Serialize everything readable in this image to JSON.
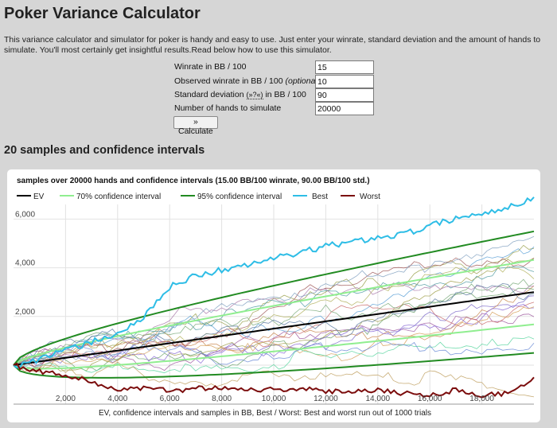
{
  "page": {
    "title": "Poker Variance Calculator",
    "intro": "This variance calculator and simulator for poker is handy and easy to use. Just enter your winrate, standard deviation and the amount of hands to simulate. You'll most certainly get insightful results.Read below how to use this simulator.",
    "section_title": "20 samples and confidence intervals"
  },
  "form": {
    "winrate_label": "Winrate in BB / 100",
    "winrate_value": "15",
    "observed_label": "Observed winrate in BB / 100",
    "observed_optional": "(optional)",
    "observed_value": "10",
    "stddev_label": "Standard deviation",
    "stddev_link": "(»?«)",
    "stddev_label_suffix": "in BB / 100",
    "stddev_value": "90",
    "hands_label": "Number of hands to simulate",
    "hands_value": "20000",
    "calculate_label": "» Calculate"
  },
  "colors": {
    "ev": "#000000",
    "ci70": "#90ee90",
    "ci95": "#228b22",
    "best": "#2ebde6",
    "worst": "#7b0c0c"
  },
  "chart_data": {
    "type": "line",
    "title": "samples over 20000 hands and confidence intervals (15.00 BB/100 winrate, 90.00 BB/100 std.)",
    "caption": "EV, confidence intervals and samples in BB, Best / Worst: Best and worst run out of 1000 trials",
    "legend": [
      "EV",
      "70% confidence interval",
      "95% confidence interval",
      "Best",
      "Worst"
    ],
    "legend_position": "top",
    "xlim": [
      0,
      20000
    ],
    "ylim": [
      -1600,
      6600
    ],
    "x_ticks": [
      "2,000",
      "4,000",
      "6,000",
      "8,000",
      "10,000",
      "12,000",
      "14,000",
      "16,000",
      "18,000"
    ],
    "y_ticks": [
      "2,000",
      "4,000",
      "6,000"
    ],
    "winrate_bb100": 15,
    "stddev_bb100": 90,
    "hands": 20000,
    "samples": 20,
    "series": [
      {
        "name": "Best",
        "x": [
          0,
          1000,
          2000,
          3000,
          4000,
          5000,
          6000,
          7000,
          8000,
          9000,
          10000,
          11000,
          12000,
          13000,
          14000,
          15000,
          16000,
          17000,
          18000,
          19000,
          20000
        ],
        "values": [
          0,
          250,
          600,
          950,
          1300,
          1950,
          3200,
          3700,
          3900,
          4100,
          4400,
          4600,
          4900,
          5050,
          5250,
          5400,
          5700,
          6050,
          6200,
          6500,
          6900
        ]
      },
      {
        "name": "Worst",
        "x": [
          0,
          1000,
          2000,
          3000,
          4000,
          5000,
          6000,
          7000,
          8000,
          9000,
          10000,
          11000,
          12000,
          13000,
          14000,
          15000,
          16000,
          17000,
          18000,
          19000,
          20000
        ],
        "values": [
          0,
          -250,
          -400,
          -700,
          -1000,
          -950,
          -1050,
          -950,
          -900,
          -1000,
          -1000,
          -950,
          -1100,
          -1050,
          -1000,
          -1150,
          -1250,
          -1000,
          -1250,
          -1150,
          -500
        ]
      }
    ]
  }
}
